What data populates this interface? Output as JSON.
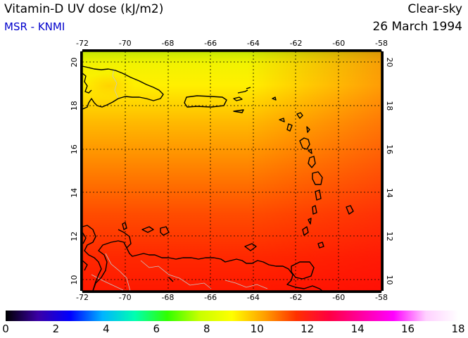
{
  "header": {
    "title": "Vitamin-D UV dose (kJ/m2)",
    "subtitle": "MSR - KNMI",
    "mode": "Clear-sky",
    "date": "26 March 1994"
  },
  "map": {
    "lon_range": [
      -72,
      -58
    ],
    "lat_range": [
      9.5,
      20.5
    ],
    "lon_ticks": [
      "-72",
      "-70",
      "-68",
      "-66",
      "-64",
      "-62",
      "-60",
      "-58"
    ],
    "lat_ticks": [
      "10",
      "12",
      "14",
      "16",
      "18",
      "20"
    ],
    "gridlines": true,
    "colors": {
      "frame": "#000000",
      "coast": "#000000",
      "border": "#c0c0c0"
    }
  },
  "colorbar": {
    "min": 0,
    "max": 18,
    "labels": [
      "0",
      "2",
      "4",
      "6",
      "8",
      "10",
      "12",
      "14",
      "16",
      "18"
    ],
    "stops": [
      "#000000",
      "#3b00a6",
      "#0000ff",
      "#00b4ff",
      "#00ffb0",
      "#30ff00",
      "#c8ff00",
      "#ffff00",
      "#ffa000",
      "#ff3000",
      "#ff0040",
      "#ff00a0",
      "#ff00ff",
      "#ffd0ff",
      "#ffffff"
    ]
  }
}
